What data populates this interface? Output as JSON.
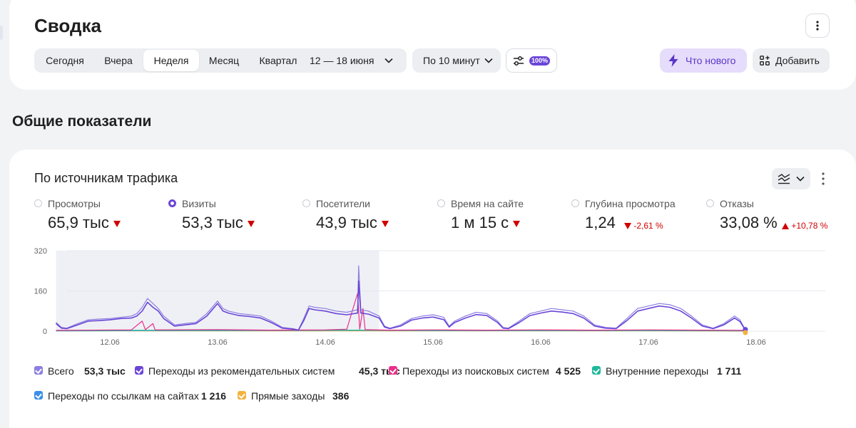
{
  "header": {
    "title": "Сводка",
    "periods": [
      "Сегодня",
      "Вчера",
      "Неделя",
      "Месяц",
      "Квартал"
    ],
    "active_period": "Неделя",
    "date_range": "12 — 18 июня",
    "interval": "По 10 минут",
    "sampling_badge": "100%",
    "whats_new": "Что нового",
    "add": "Добавить"
  },
  "section_title": "Общие показатели",
  "report": {
    "title": "По источникам трафика",
    "metrics": [
      {
        "name": "Просмотры",
        "value": "65,9 тыс",
        "selected": false,
        "trend": "down",
        "delta": ""
      },
      {
        "name": "Визиты",
        "value": "53,3 тыс",
        "selected": true,
        "trend": "down",
        "delta": ""
      },
      {
        "name": "Посетители",
        "value": "43,9 тыс",
        "selected": false,
        "trend": "down",
        "delta": ""
      },
      {
        "name": "Время на сайте",
        "value": "1 м 15 с",
        "selected": false,
        "trend": "down",
        "delta": ""
      },
      {
        "name": "Глубина просмотра",
        "value": "1,24",
        "selected": false,
        "trend": "down",
        "delta": "-2,61 %"
      },
      {
        "name": "Отказы",
        "value": "33,08 %",
        "selected": false,
        "trend": "up",
        "delta": "+10,78 %"
      }
    ],
    "legend": [
      {
        "name": "Всего",
        "value": "53,3 тыс",
        "color": "#8b7fe0"
      },
      {
        "name": "Переходы из рекомендательных систем",
        "value": "45,3 тыс",
        "color": "#6b45d8"
      },
      {
        "name": "Переходы из поисковых систем",
        "value": "4 525",
        "color": "#e8308a"
      },
      {
        "name": "Внутренние переходы",
        "value": "1 711",
        "color": "#1fb89a"
      },
      {
        "name": "Переходы по ссылкам на сайтах",
        "value": "1 216",
        "color": "#3b8fe8"
      },
      {
        "name": "Прямые заходы",
        "value": "386",
        "color": "#f4b23e"
      }
    ]
  },
  "chart_data": {
    "type": "line",
    "x_ticks": [
      "12.06",
      "13.06",
      "14.06",
      "15.06",
      "16.06",
      "17.06",
      "18.06"
    ],
    "y_ticks": [
      "320",
      "160",
      "0"
    ],
    "ylim": [
      0,
      320
    ],
    "grid": true,
    "x_start": 11.5,
    "x_end": 17.9,
    "highlight_range": [
      11.5,
      14.5
    ],
    "series": [
      {
        "name": "Всего",
        "color": "#8b7fe0",
        "points": [
          [
            11.5,
            35
          ],
          [
            11.55,
            15
          ],
          [
            11.6,
            12
          ],
          [
            11.7,
            30
          ],
          [
            11.8,
            45
          ],
          [
            11.9,
            48
          ],
          [
            12.0,
            50
          ],
          [
            12.1,
            55
          ],
          [
            12.2,
            60
          ],
          [
            12.25,
            70
          ],
          [
            12.3,
            95
          ],
          [
            12.35,
            130
          ],
          [
            12.4,
            110
          ],
          [
            12.45,
            90
          ],
          [
            12.5,
            60
          ],
          [
            12.6,
            25
          ],
          [
            12.7,
            30
          ],
          [
            12.8,
            35
          ],
          [
            12.9,
            70
          ],
          [
            13.0,
            120
          ],
          [
            13.05,
            90
          ],
          [
            13.1,
            80
          ],
          [
            13.2,
            70
          ],
          [
            13.3,
            65
          ],
          [
            13.4,
            60
          ],
          [
            13.5,
            40
          ],
          [
            13.6,
            15
          ],
          [
            13.7,
            10
          ],
          [
            13.75,
            5
          ],
          [
            13.8,
            50
          ],
          [
            13.85,
            100
          ],
          [
            13.9,
            95
          ],
          [
            14.0,
            90
          ],
          [
            14.1,
            80
          ],
          [
            14.2,
            75
          ],
          [
            14.3,
            85
          ],
          [
            14.31,
            260
          ],
          [
            14.33,
            85
          ],
          [
            14.4,
            80
          ],
          [
            14.5,
            60
          ],
          [
            14.55,
            20
          ],
          [
            14.6,
            12
          ],
          [
            14.7,
            25
          ],
          [
            14.8,
            50
          ],
          [
            14.9,
            60
          ],
          [
            15.0,
            65
          ],
          [
            15.1,
            55
          ],
          [
            15.15,
            20
          ],
          [
            15.2,
            40
          ],
          [
            15.3,
            60
          ],
          [
            15.4,
            75
          ],
          [
            15.5,
            70
          ],
          [
            15.6,
            40
          ],
          [
            15.65,
            15
          ],
          [
            15.7,
            12
          ],
          [
            15.8,
            40
          ],
          [
            15.9,
            70
          ],
          [
            16.0,
            80
          ],
          [
            16.1,
            90
          ],
          [
            16.2,
            85
          ],
          [
            16.3,
            80
          ],
          [
            16.4,
            60
          ],
          [
            16.5,
            25
          ],
          [
            16.6,
            15
          ],
          [
            16.7,
            12
          ],
          [
            16.8,
            50
          ],
          [
            16.9,
            90
          ],
          [
            17.0,
            100
          ],
          [
            17.1,
            110
          ],
          [
            17.2,
            105
          ],
          [
            17.3,
            90
          ],
          [
            17.4,
            60
          ],
          [
            17.5,
            25
          ],
          [
            17.6,
            12
          ],
          [
            17.7,
            30
          ],
          [
            17.8,
            60
          ],
          [
            17.85,
            45
          ],
          [
            17.9,
            5
          ]
        ]
      },
      {
        "name": "Переходы из рекомендательных систем",
        "color": "#6b45d8",
        "points": [
          [
            11.5,
            30
          ],
          [
            11.55,
            12
          ],
          [
            11.6,
            10
          ],
          [
            11.7,
            25
          ],
          [
            11.8,
            40
          ],
          [
            11.9,
            42
          ],
          [
            12.0,
            45
          ],
          [
            12.1,
            50
          ],
          [
            12.2,
            52
          ],
          [
            12.25,
            60
          ],
          [
            12.3,
            80
          ],
          [
            12.35,
            115
          ],
          [
            12.4,
            95
          ],
          [
            12.45,
            80
          ],
          [
            12.5,
            50
          ],
          [
            12.6,
            20
          ],
          [
            12.7,
            25
          ],
          [
            12.8,
            30
          ],
          [
            12.9,
            60
          ],
          [
            13.0,
            110
          ],
          [
            13.05,
            80
          ],
          [
            13.1,
            72
          ],
          [
            13.2,
            62
          ],
          [
            13.3,
            58
          ],
          [
            13.4,
            52
          ],
          [
            13.5,
            34
          ],
          [
            13.6,
            12
          ],
          [
            13.7,
            8
          ],
          [
            13.75,
            4
          ],
          [
            13.8,
            42
          ],
          [
            13.85,
            90
          ],
          [
            13.9,
            85
          ],
          [
            14.0,
            80
          ],
          [
            14.1,
            70
          ],
          [
            14.2,
            65
          ],
          [
            14.3,
            72
          ],
          [
            14.31,
            200
          ],
          [
            14.33,
            72
          ],
          [
            14.4,
            68
          ],
          [
            14.5,
            52
          ],
          [
            14.55,
            16
          ],
          [
            14.6,
            10
          ],
          [
            14.7,
            20
          ],
          [
            14.8,
            44
          ],
          [
            14.9,
            52
          ],
          [
            15.0,
            56
          ],
          [
            15.1,
            46
          ],
          [
            15.15,
            16
          ],
          [
            15.2,
            34
          ],
          [
            15.3,
            52
          ],
          [
            15.4,
            66
          ],
          [
            15.5,
            62
          ],
          [
            15.6,
            34
          ],
          [
            15.65,
            12
          ],
          [
            15.7,
            10
          ],
          [
            15.8,
            34
          ],
          [
            15.9,
            62
          ],
          [
            16.0,
            72
          ],
          [
            16.1,
            80
          ],
          [
            16.2,
            76
          ],
          [
            16.3,
            70
          ],
          [
            16.4,
            52
          ],
          [
            16.5,
            20
          ],
          [
            16.6,
            12
          ],
          [
            16.7,
            10
          ],
          [
            16.8,
            42
          ],
          [
            16.9,
            80
          ],
          [
            17.0,
            90
          ],
          [
            17.1,
            100
          ],
          [
            17.2,
            95
          ],
          [
            17.3,
            80
          ],
          [
            17.4,
            52
          ],
          [
            17.5,
            20
          ],
          [
            17.6,
            10
          ],
          [
            17.7,
            25
          ],
          [
            17.8,
            52
          ],
          [
            17.85,
            38
          ],
          [
            17.9,
            4
          ]
        ]
      },
      {
        "name": "Переходы из поисковых систем",
        "color": "#e8308a",
        "points": [
          [
            11.5,
            3
          ],
          [
            12.2,
            5
          ],
          [
            12.3,
            40
          ],
          [
            12.33,
            6
          ],
          [
            12.4,
            30
          ],
          [
            12.42,
            5
          ],
          [
            13.0,
            6
          ],
          [
            13.5,
            4
          ],
          [
            14.0,
            5
          ],
          [
            14.2,
            8
          ],
          [
            14.3,
            150
          ],
          [
            14.32,
            8
          ],
          [
            14.35,
            90
          ],
          [
            14.37,
            6
          ],
          [
            14.6,
            4
          ],
          [
            15.0,
            5
          ],
          [
            15.5,
            4
          ],
          [
            16.0,
            5
          ],
          [
            16.5,
            4
          ],
          [
            17.0,
            5
          ],
          [
            17.5,
            4
          ],
          [
            17.9,
            3
          ]
        ]
      },
      {
        "name": "Внутренние переходы",
        "color": "#1fb89a",
        "points": [
          [
            11.5,
            2
          ],
          [
            12.3,
            3
          ],
          [
            13.0,
            3
          ],
          [
            14.3,
            4
          ],
          [
            15.0,
            3
          ],
          [
            16.0,
            3
          ],
          [
            17.0,
            3
          ],
          [
            17.9,
            2
          ]
        ]
      },
      {
        "name": "Переходы по ссылкам на сайтах",
        "color": "#3b8fe8",
        "points": [
          [
            11.5,
            1
          ],
          [
            12.3,
            2
          ],
          [
            13.0,
            2
          ],
          [
            14.3,
            3
          ],
          [
            15.0,
            2
          ],
          [
            16.0,
            2
          ],
          [
            17.0,
            2
          ],
          [
            17.9,
            1
          ]
        ]
      },
      {
        "name": "Прямые заходы",
        "color": "#f4b23e",
        "points": [
          [
            11.5,
            1
          ],
          [
            13.0,
            1
          ],
          [
            14.3,
            1
          ],
          [
            15.0,
            1
          ],
          [
            16.0,
            1
          ],
          [
            17.0,
            1
          ],
          [
            17.9,
            0
          ]
        ]
      }
    ]
  }
}
